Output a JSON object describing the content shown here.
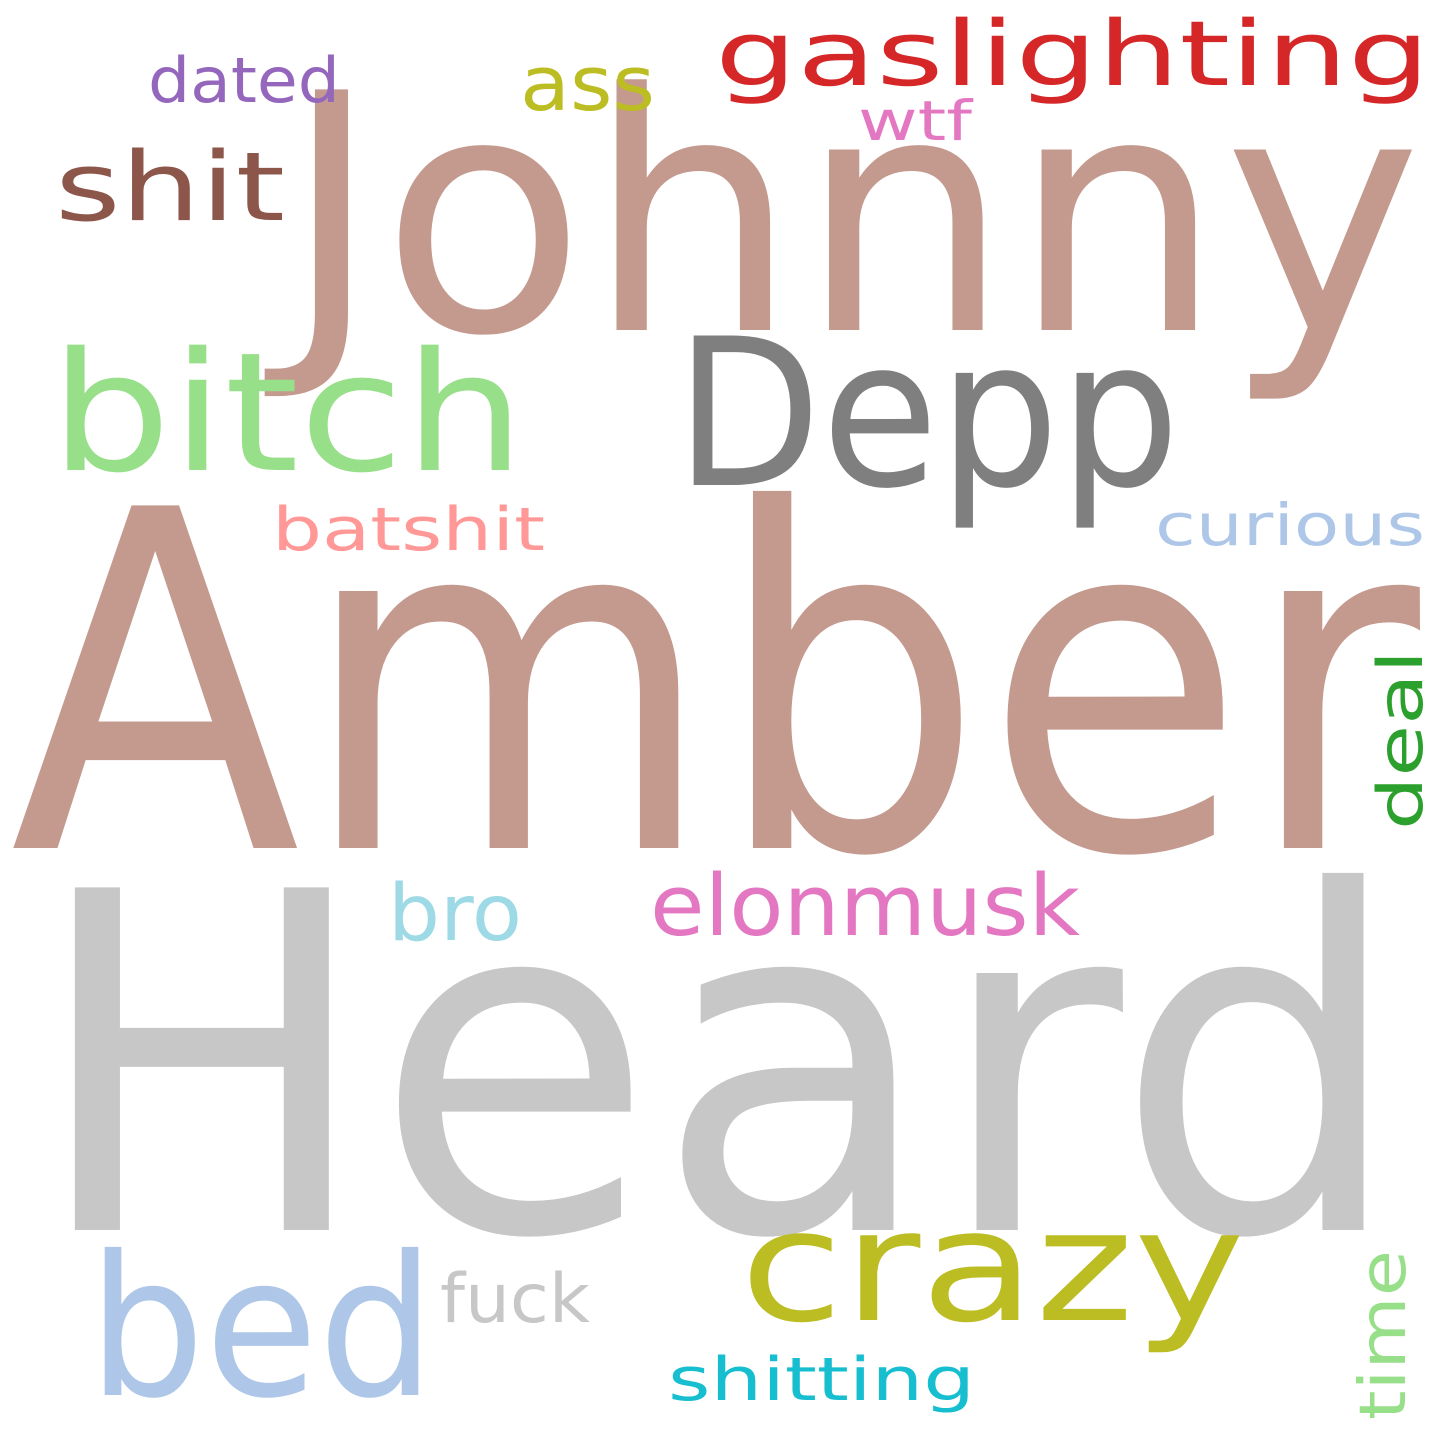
{
  "words": [
    {
      "text": "Amber",
      "color": "#c49a8f"
    },
    {
      "text": "Heard",
      "color": "#c7c7c7"
    },
    {
      "text": "Johnny",
      "color": "#c49a8f"
    },
    {
      "text": "Depp",
      "color": "#7f7f7f"
    },
    {
      "text": "bitch",
      "color": "#98df8a"
    },
    {
      "text": "gaslighting",
      "color": "#d62728"
    },
    {
      "text": "bed",
      "color": "#aec7e8"
    },
    {
      "text": "crazy",
      "color": "#bcbd22"
    },
    {
      "text": "shit",
      "color": "#8c564b"
    },
    {
      "text": "elonmusk",
      "color": "#e377c2"
    },
    {
      "text": "ass",
      "color": "#bcbd22"
    },
    {
      "text": "bro",
      "color": "#9edae5"
    },
    {
      "text": "dated",
      "color": "#9467bd"
    },
    {
      "text": "fuck",
      "color": "#c7c7c7"
    },
    {
      "text": "batshit",
      "color": "#ff9896"
    },
    {
      "text": "curious",
      "color": "#aec7e8"
    },
    {
      "text": "deal",
      "color": "#2ca02c"
    },
    {
      "text": "time",
      "color": "#98df8a"
    },
    {
      "text": "shitting",
      "color": "#17becf"
    },
    {
      "text": "wtf",
      "color": "#e377c2"
    }
  ]
}
